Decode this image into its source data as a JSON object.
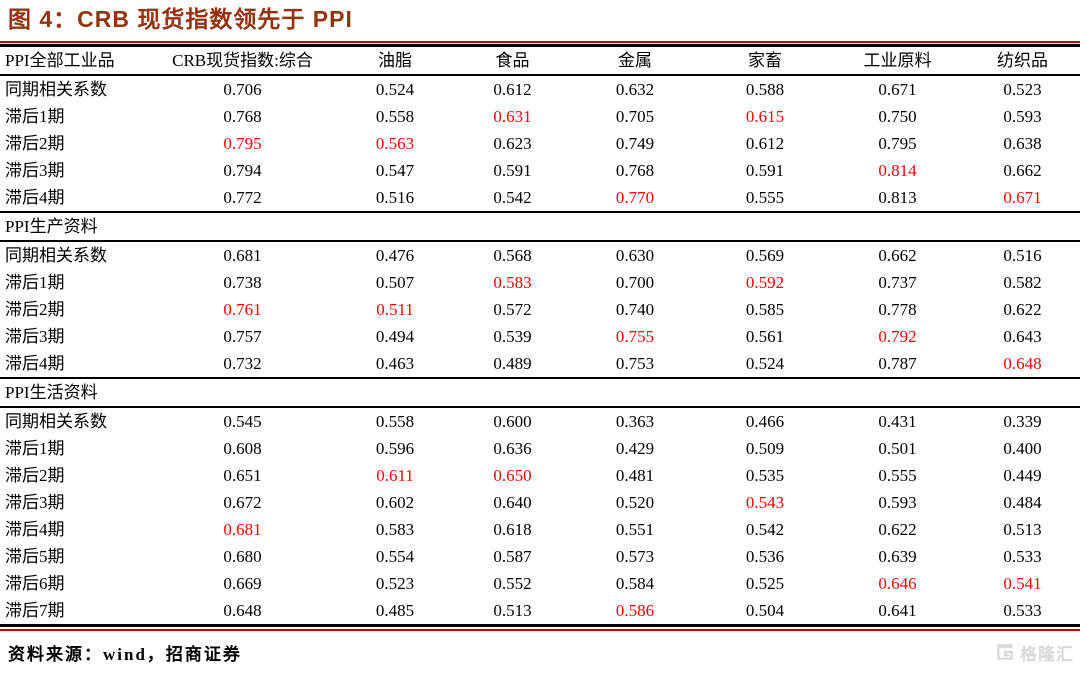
{
  "title": "图 4：CRB 现货指数领先于 PPI",
  "footer": {
    "source": "资料来源：wind，招商证券",
    "watermark": "格隆汇"
  },
  "colors": {
    "title_red": "#93330F",
    "rule_red": "#C00000",
    "rule_black": "#000000",
    "highlight_red": "#FF0000",
    "text_black": "#000000",
    "watermark_gray": "#D9D9D9",
    "background": "#FFFFFF"
  },
  "chart_data": {
    "type": "table",
    "title": "图 4：CRB 现货指数领先于 PPI",
    "columns": [
      "PPI全部工业品",
      "CRB现货指数:综合",
      "油脂",
      "食品",
      "金属",
      "家畜",
      "工业原料",
      "纺织品"
    ],
    "highlight_meaning": "red bold values mark the peak correlation",
    "sections": [
      {
        "name": "PPI全部工业品",
        "label_row": false,
        "rows": [
          {
            "label": "同期相关系数",
            "values": [
              "0.706",
              "0.524",
              "0.612",
              "0.632",
              "0.588",
              "0.671",
              "0.523"
            ],
            "red_indices": []
          },
          {
            "label": "滞后1期",
            "values": [
              "0.768",
              "0.558",
              "0.631",
              "0.705",
              "0.615",
              "0.750",
              "0.593"
            ],
            "red_indices": [
              2,
              4
            ]
          },
          {
            "label": "滞后2期",
            "values": [
              "0.795",
              "0.563",
              "0.623",
              "0.749",
              "0.612",
              "0.795",
              "0.638"
            ],
            "red_indices": [
              0,
              1
            ]
          },
          {
            "label": "滞后3期",
            "values": [
              "0.794",
              "0.547",
              "0.591",
              "0.768",
              "0.591",
              "0.814",
              "0.662"
            ],
            "red_indices": [
              5
            ]
          },
          {
            "label": "滞后4期",
            "values": [
              "0.772",
              "0.516",
              "0.542",
              "0.770",
              "0.555",
              "0.813",
              "0.671"
            ],
            "red_indices": [
              3,
              6
            ]
          }
        ]
      },
      {
        "name": "PPI生产资料",
        "label_row": true,
        "rows": [
          {
            "label": "同期相关系数",
            "values": [
              "0.681",
              "0.476",
              "0.568",
              "0.630",
              "0.569",
              "0.662",
              "0.516"
            ],
            "red_indices": []
          },
          {
            "label": "滞后1期",
            "values": [
              "0.738",
              "0.507",
              "0.583",
              "0.700",
              "0.592",
              "0.737",
              "0.582"
            ],
            "red_indices": [
              2,
              4
            ]
          },
          {
            "label": "滞后2期",
            "values": [
              "0.761",
              "0.511",
              "0.572",
              "0.740",
              "0.585",
              "0.778",
              "0.622"
            ],
            "red_indices": [
              0,
              1
            ]
          },
          {
            "label": "滞后3期",
            "values": [
              "0.757",
              "0.494",
              "0.539",
              "0.755",
              "0.561",
              "0.792",
              "0.643"
            ],
            "red_indices": [
              3,
              5
            ]
          },
          {
            "label": "滞后4期",
            "values": [
              "0.732",
              "0.463",
              "0.489",
              "0.753",
              "0.524",
              "0.787",
              "0.648"
            ],
            "red_indices": [
              6
            ]
          }
        ]
      },
      {
        "name": "PPI生活资料",
        "label_row": true,
        "rows": [
          {
            "label": "同期相关系数",
            "values": [
              "0.545",
              "0.558",
              "0.600",
              "0.363",
              "0.466",
              "0.431",
              "0.339"
            ],
            "red_indices": []
          },
          {
            "label": "滞后1期",
            "values": [
              "0.608",
              "0.596",
              "0.636",
              "0.429",
              "0.509",
              "0.501",
              "0.400"
            ],
            "red_indices": []
          },
          {
            "label": "滞后2期",
            "values": [
              "0.651",
              "0.611",
              "0.650",
              "0.481",
              "0.535",
              "0.555",
              "0.449"
            ],
            "red_indices": [
              1,
              2
            ]
          },
          {
            "label": "滞后3期",
            "values": [
              "0.672",
              "0.602",
              "0.640",
              "0.520",
              "0.543",
              "0.593",
              "0.484"
            ],
            "red_indices": [
              4
            ]
          },
          {
            "label": "滞后4期",
            "values": [
              "0.681",
              "0.583",
              "0.618",
              "0.551",
              "0.542",
              "0.622",
              "0.513"
            ],
            "red_indices": [
              0
            ]
          },
          {
            "label": "滞后5期",
            "values": [
              "0.680",
              "0.554",
              "0.587",
              "0.573",
              "0.536",
              "0.639",
              "0.533"
            ],
            "red_indices": []
          },
          {
            "label": "滞后6期",
            "values": [
              "0.669",
              "0.523",
              "0.552",
              "0.584",
              "0.525",
              "0.646",
              "0.541"
            ],
            "red_indices": [
              5,
              6
            ]
          },
          {
            "label": "滞后7期",
            "values": [
              "0.648",
              "0.485",
              "0.513",
              "0.586",
              "0.504",
              "0.641",
              "0.533"
            ],
            "red_indices": [
              3
            ]
          }
        ]
      }
    ]
  }
}
